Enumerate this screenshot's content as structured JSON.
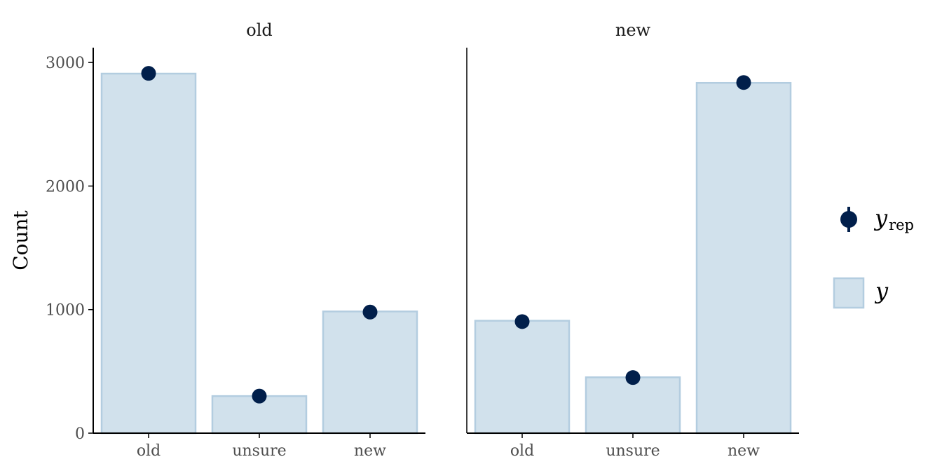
{
  "chart_data": {
    "type": "bar",
    "ylabel": "Count",
    "ylim": [
      0,
      3120
    ],
    "yticks": [
      "0",
      "1000",
      "2000",
      "3000"
    ],
    "categories": [
      "old",
      "unsure",
      "new"
    ],
    "facets": [
      {
        "label": "old",
        "y": [
          2910,
          300,
          985
        ],
        "y_rep": [
          2912,
          300,
          980
        ]
      },
      {
        "label": "new",
        "y": [
          910,
          452,
          2835
        ],
        "y_rep": [
          903,
          450,
          2838
        ]
      }
    ],
    "legend": {
      "point_symbol": "y",
      "point_subscript": "rep",
      "bar_symbol": "y",
      "placement": "right"
    },
    "colors": {
      "bar_fill": "#d1e1ec",
      "bar_stroke": "#b3cde0",
      "point": "#011f4b",
      "axis": "#000000"
    },
    "grid": false
  }
}
